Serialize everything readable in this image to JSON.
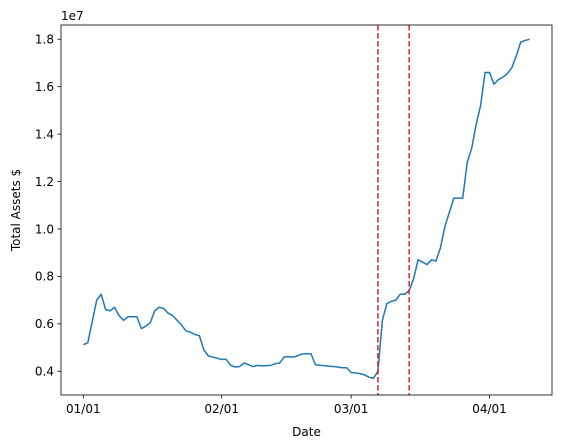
{
  "chart_data": {
    "type": "line",
    "xlabel": "Date",
    "ylabel": "Total Assets $",
    "offset_text": "1e7",
    "x_tick_labels": [
      "01/01",
      "02/01",
      "03/01",
      "04/01"
    ],
    "x_tick_dates": [
      "2024-01-01",
      "2024-02-01",
      "2024-03-01",
      "2024-04-01"
    ],
    "y_tick_labels": [
      "0.4",
      "0.6",
      "0.8",
      "1.0",
      "1.2",
      "1.4",
      "1.6",
      "1.8"
    ],
    "y_tick_values": [
      4000000,
      6000000,
      8000000,
      10000000,
      12000000,
      14000000,
      16000000,
      18000000
    ],
    "xlim": [
      "2023-12-27",
      "2024-04-15"
    ],
    "ylim": [
      3000000,
      18600000
    ],
    "line_color": "#1f77b4",
    "vline_color": "#d62728",
    "vertical_lines": [
      "2024-03-07",
      "2024-03-14"
    ],
    "series": [
      {
        "x": [
          "2024-01-01",
          "2024-01-02",
          "2024-01-04",
          "2024-01-05",
          "2024-01-06",
          "2024-01-07",
          "2024-01-08",
          "2024-01-09",
          "2024-01-10",
          "2024-01-11",
          "2024-01-12",
          "2024-01-13",
          "2024-01-14",
          "2024-01-15",
          "2024-01-16",
          "2024-01-17",
          "2024-01-18",
          "2024-01-19",
          "2024-01-20",
          "2024-01-21",
          "2024-01-22",
          "2024-01-23",
          "2024-01-24",
          "2024-01-25",
          "2024-01-26",
          "2024-01-27",
          "2024-01-28",
          "2024-01-29",
          "2024-01-30",
          "2024-01-31",
          "2024-02-01",
          "2024-02-02",
          "2024-02-03",
          "2024-02-04",
          "2024-02-05",
          "2024-02-06",
          "2024-02-07",
          "2024-02-08",
          "2024-02-09",
          "2024-02-10",
          "2024-02-11",
          "2024-02-12",
          "2024-02-13",
          "2024-02-14",
          "2024-02-15",
          "2024-02-16",
          "2024-02-17",
          "2024-02-18",
          "2024-02-19",
          "2024-02-20",
          "2024-02-21",
          "2024-02-22",
          "2024-02-23",
          "2024-02-24",
          "2024-02-25",
          "2024-02-26",
          "2024-02-27",
          "2024-02-28",
          "2024-02-29",
          "2024-03-01",
          "2024-03-02",
          "2024-03-03",
          "2024-03-04",
          "2024-03-05",
          "2024-03-06",
          "2024-03-07",
          "2024-03-08",
          "2024-03-09",
          "2024-03-10",
          "2024-03-11",
          "2024-03-12",
          "2024-03-13",
          "2024-03-14",
          "2024-03-15",
          "2024-03-16",
          "2024-03-17",
          "2024-03-18",
          "2024-03-19",
          "2024-03-20",
          "2024-03-21",
          "2024-03-22",
          "2024-03-23",
          "2024-03-24",
          "2024-03-25",
          "2024-03-26",
          "2024-03-27",
          "2024-03-28",
          "2024-03-29",
          "2024-03-30",
          "2024-03-31",
          "2024-04-01",
          "2024-04-02",
          "2024-04-03",
          "2024-04-04",
          "2024-04-05",
          "2024-04-06",
          "2024-04-07",
          "2024-04-08",
          "2024-04-09",
          "2024-04-10"
        ],
        "y": [
          5120000,
          5200000,
          7000000,
          7250000,
          6600000,
          6550000,
          6700000,
          6350000,
          6150000,
          6300000,
          6300000,
          6300000,
          5800000,
          5900000,
          6050000,
          6550000,
          6700000,
          6650000,
          6450000,
          6350000,
          6150000,
          5950000,
          5700000,
          5650000,
          5550000,
          5500000,
          4900000,
          4650000,
          4600000,
          4550000,
          4500000,
          4500000,
          4250000,
          4180000,
          4200000,
          4350000,
          4280000,
          4200000,
          4250000,
          4230000,
          4240000,
          4250000,
          4320000,
          4350000,
          4600000,
          4610000,
          4600000,
          4650000,
          4730000,
          4740000,
          4740000,
          4280000,
          4250000,
          4240000,
          4210000,
          4200000,
          4180000,
          4150000,
          4150000,
          3950000,
          3930000,
          3900000,
          3850000,
          3750000,
          3700000,
          4000000,
          6150000,
          6850000,
          6950000,
          7000000,
          7250000,
          7250000,
          7400000,
          7900000,
          8700000,
          8600000,
          8500000,
          8700000,
          8650000,
          9200000,
          10100000,
          10700000,
          11300000,
          11300000,
          11300000,
          12800000,
          13400000,
          14400000,
          15200000,
          16600000,
          16600000,
          16100000,
          16300000,
          16400000,
          16550000,
          16800000,
          17300000,
          17880000,
          17950000,
          18000000
        ],
        "color": "#1f77b4"
      }
    ]
  }
}
